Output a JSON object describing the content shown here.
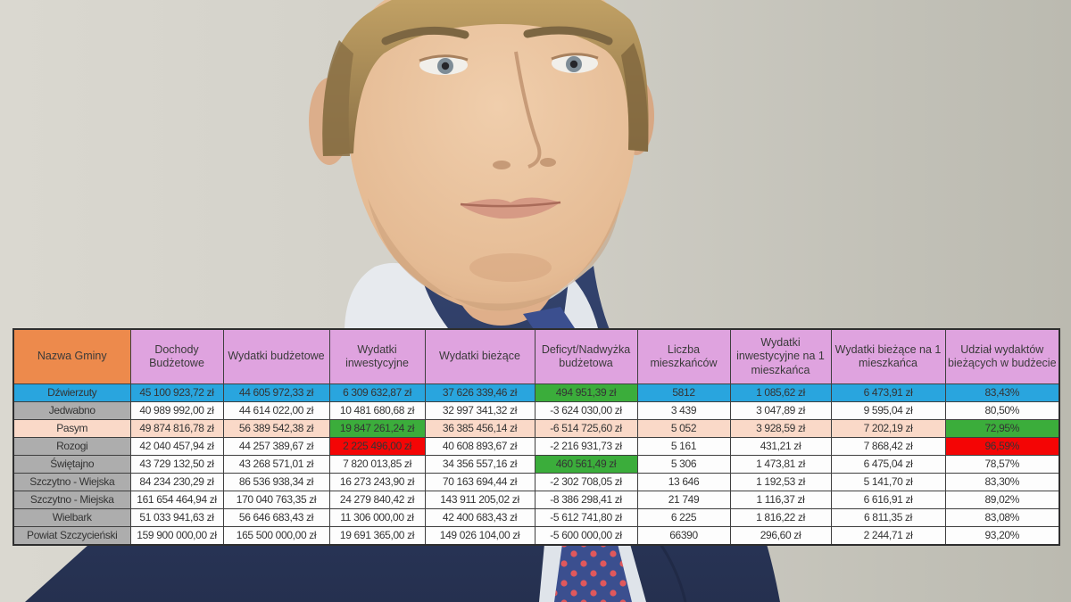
{
  "chart_data": {
    "type": "table",
    "columns": [
      "Nazwa Gminy",
      "Dochody Budżetowe",
      "Wydatki budżetowe",
      "Wydatki inwestycyjne",
      "Wydatki bieżące",
      "Deficyt/Nadwyżka budżetowa",
      "Liczba mieszkańców",
      "Wydatki inwestycyjne na 1 mieszkańca",
      "Wydatki bieżące na 1 mieszkańca",
      "Udział wydaktów bieżących w budżecie"
    ],
    "rows": [
      {
        "name": "Dźwierzuty",
        "values": [
          "45 100 923,72 zł",
          "44 605 972,33 zł",
          "6 309 632,87 zł",
          "37 626 339,46 zł",
          "494 951,39 zł",
          "5812",
          "1 085,62 zł",
          "6 473,91 zł",
          "83,43%"
        ],
        "row_color": "blue",
        "highlights": {
          "5": "green"
        }
      },
      {
        "name": "Jedwabno",
        "values": [
          "40 989 992,00 zł",
          "44 614 022,00 zł",
          "10 481 680,68 zł",
          "32 997 341,32 zł",
          "-3 624 030,00 zł",
          "3 439",
          "3 047,89 zł",
          "9 595,04 zł",
          "80,50%"
        ],
        "row_color": "white",
        "highlights": {}
      },
      {
        "name": "Pasym",
        "values": [
          "49 874 816,78 zł",
          "56 389 542,38 zł",
          "19 847 261,24 zł",
          "36 385 456,14 zł",
          "-6 514 725,60 zł",
          "5 052",
          "3 928,59 zł",
          "7 202,19 zł",
          "72,95%"
        ],
        "row_color": "peach",
        "highlights": {
          "3": "green",
          "9": "green"
        }
      },
      {
        "name": "Rozogi",
        "values": [
          "42 040 457,94 zł",
          "44 257 389,67 zł",
          "2 225 496,00 zł",
          "40 608 893,67 zł",
          "-2 216 931,73 zł",
          "5 161",
          "431,21 zł",
          "7 868,42 zł",
          "96,59%"
        ],
        "row_color": "white",
        "highlights": {
          "3": "red",
          "9": "red"
        }
      },
      {
        "name": "Świętajno",
        "values": [
          "43 729 132,50 zł",
          "43 268 571,01 zł",
          "7 820 013,85 zł",
          "34 356 557,16 zł",
          "460 561,49 zł",
          "5 306",
          "1 473,81 zł",
          "6 475,04 zł",
          "78,57%"
        ],
        "row_color": "white",
        "highlights": {
          "5": "green"
        }
      },
      {
        "name": "Szczytno - Wiejska",
        "values": [
          "84 234 230,29 zł",
          "86 536 938,34 zł",
          "16 273 243,90 zł",
          "70 163 694,44 zł",
          "-2 302 708,05 zł",
          "13 646",
          "1 192,53 zł",
          "5 141,70 zł",
          "83,30%"
        ],
        "row_color": "white",
        "highlights": {}
      },
      {
        "name": "Szczytno - Miejska",
        "values": [
          "161 654 464,94 zł",
          "170 040 763,35 zł",
          "24 279 840,42 zł",
          "143 911 205,02 zł",
          "-8 386 298,41 zł",
          "21 749",
          "1 116,37 zł",
          "6 616,91 zł",
          "89,02%"
        ],
        "row_color": "white",
        "highlights": {}
      },
      {
        "name": "Wielbark",
        "values": [
          "51 033 941,63 zł",
          "56 646 683,43 zł",
          "11 306 000,00 zł",
          "42 400 683,43 zł",
          "-5 612 741,80 zł",
          "6 225",
          "1 816,22 zł",
          "6 811,35 zł",
          "83,08%"
        ],
        "row_color": "white",
        "highlights": {}
      },
      {
        "name": "Powiat Szczycieński",
        "values": [
          "159 900 000,00 zł",
          "165 500 000,00 zł",
          "19 691 365,00 zł",
          "149 026 104,00 zł",
          "-5 600 000,00 zł",
          "66390",
          "296,60 zł",
          "2 244,71 zł",
          "93,20%"
        ],
        "row_color": "white",
        "highlights": {}
      }
    ],
    "colors": {
      "header_name": "#ED8A4C",
      "header": "#DFA3DF",
      "row_blue": "#29A5DE",
      "cell_green": "#3BAD3B",
      "cell_red": "#F40505",
      "row_peach": "#FAD9C8",
      "name_gray": "#ADADAD"
    },
    "layout_hints": {
      "grid": "on",
      "header_rows": 1,
      "legend": "none"
    }
  }
}
